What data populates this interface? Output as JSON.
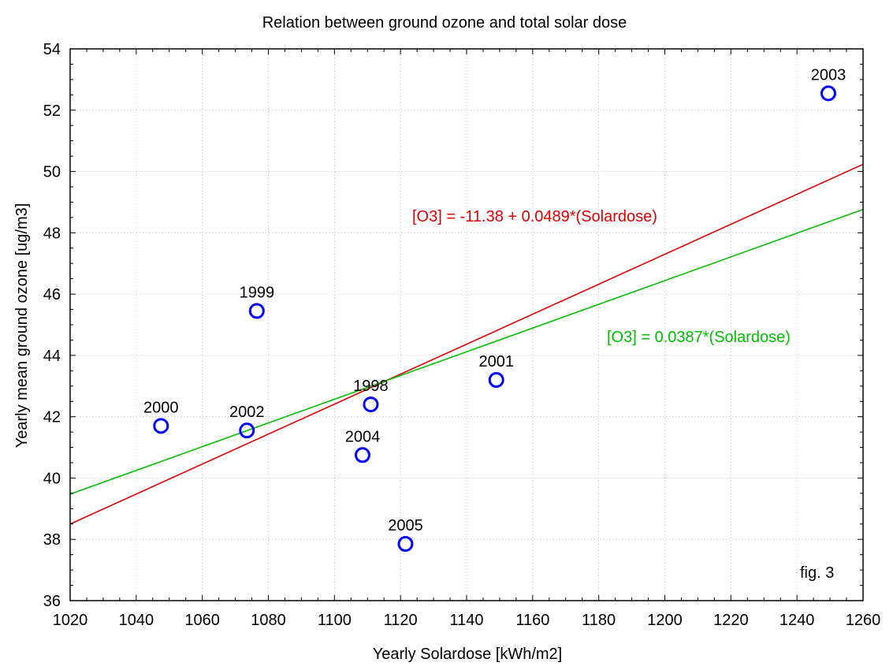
{
  "chart_data": {
    "type": "scatter",
    "title": "Relation between ground ozone and total solar dose",
    "xlabel": "Yearly Solardose [kWh/m2]",
    "ylabel": "Yearly mean ground ozone [ug/m3]",
    "xlim": [
      1020,
      1260
    ],
    "ylim": [
      36,
      54
    ],
    "xticks": [
      "1020",
      "1040",
      "1060",
      "1080",
      "1100",
      "1120",
      "1140",
      "1160",
      "1180",
      "1200",
      "1220",
      "1240",
      "1260"
    ],
    "yticks": [
      "36",
      "38",
      "40",
      "42",
      "44",
      "46",
      "48",
      "50",
      "52",
      "54"
    ],
    "grid": true,
    "points": [
      {
        "label": "2000",
        "x": 1047.5,
        "y": 41.7
      },
      {
        "label": "2002",
        "x": 1073.5,
        "y": 41.55
      },
      {
        "label": "1999",
        "x": 1076.5,
        "y": 45.45
      },
      {
        "label": "2004",
        "x": 1108.5,
        "y": 40.75
      },
      {
        "label": "1998",
        "x": 1111,
        "y": 42.4
      },
      {
        "label": "2005",
        "x": 1121.5,
        "y": 37.85
      },
      {
        "label": "2001",
        "x": 1149,
        "y": 43.2
      },
      {
        "label": "2003",
        "x": 1249.5,
        "y": 52.55
      }
    ],
    "lines": [
      {
        "label": "[O3] = -11.38 + 0.0489*(Solardose)",
        "intercept": -11.38,
        "slope": 0.0489,
        "color": "#e00000"
      },
      {
        "label": "[O3] = 0.0387*(Solardose)",
        "intercept": 0,
        "slope": 0.0387,
        "color": "#00c000"
      }
    ],
    "annotation": "fig. 3",
    "colors": {
      "points": "#0000ff",
      "grid": "#bbbbbb",
      "axis": "#000000"
    }
  }
}
